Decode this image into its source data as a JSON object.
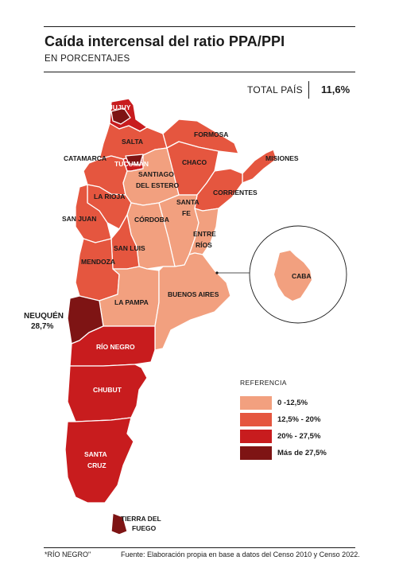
{
  "header": {
    "title": "Caída intercensal del ratio PPA/PPI",
    "subtitle": "EN PORCENTAJES"
  },
  "total": {
    "label": "TOTAL PAÍS",
    "value": "11,6%"
  },
  "colors": {
    "light": "#f2a07f",
    "mid": "#e5563f",
    "dark": "#c81c1e",
    "darkest": "#7e1414",
    "border": "#ffffff"
  },
  "regions": {
    "jujuy": "JUJUY",
    "salta": "SALTA",
    "formosa": "FORMOSA",
    "catamarca": "CATAMARCA",
    "tucuman": "TUCUMÁN",
    "chaco": "CHACO",
    "misiones": "MISIONES",
    "santiago_line1": "SANTIAGO",
    "santiago_line2": "DEL ESTERO",
    "la_rioja": "LA RIOJA",
    "corrientes": "CORRIENTES",
    "santa_fe_line1": "SANTA",
    "santa_fe_line2": "FE",
    "san_juan": "SAN JUAN",
    "cordoba": "CÓRDOBA",
    "entre_rios_line1": "ENTRE",
    "entre_rios_line2": "RÍOS",
    "san_luis": "SAN LUIS",
    "mendoza": "MENDOZA",
    "caba": "CABA",
    "la_pampa": "LA PAMPA",
    "buenos_aires": "BUENOS AIRES",
    "neuquen_name": "NEUQUÉN",
    "neuquen_value": "28,7%",
    "rio_negro": "RÍO NEGRO",
    "chubut": "CHUBUT",
    "santa_cruz_line1": "SANTA",
    "santa_cruz_line2": "CRUZ",
    "tierra_line1": "TIERRA DEL",
    "tierra_line2": "FUEGO"
  },
  "legend": {
    "title": "REFERENCIA",
    "items": [
      {
        "label": "0 -12,5%",
        "color": "#f2a07f"
      },
      {
        "label": "12,5% - 20%",
        "color": "#e5563f"
      },
      {
        "label": "20% - 27,5%",
        "color": "#c81c1e"
      },
      {
        "label": "Más de 27,5%",
        "color": "#7e1414"
      }
    ]
  },
  "footer": {
    "note": "*RÍO NEGRO\"",
    "source": "Fuente:  Elaboración propia en base a datos del Censo 2010 y Censo 2022."
  }
}
